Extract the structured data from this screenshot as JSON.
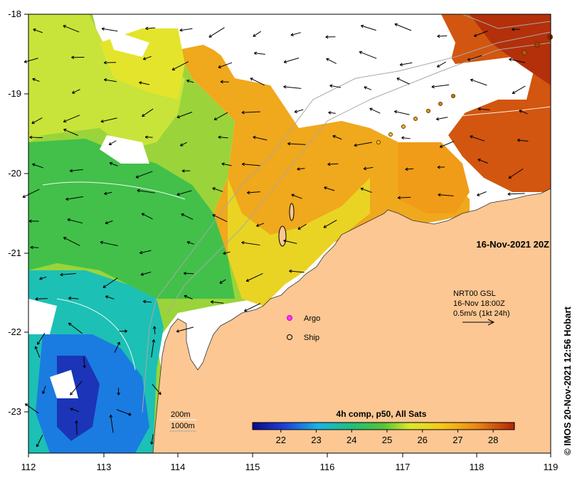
{
  "map": {
    "title": "16-Nov-2021 20Z",
    "x_ticks": [
      "112",
      "113",
      "114",
      "115",
      "116",
      "117",
      "118",
      "119"
    ],
    "y_ticks": [
      "-18",
      "-19",
      "-20",
      "-21",
      "-22",
      "-23"
    ],
    "lon_range": [
      112,
      119
    ],
    "lat_range": [
      -23.5,
      -18
    ],
    "land_color": "#fcc793",
    "ocean_blank_color": "#ffffff"
  },
  "current": {
    "line1": "NRT00 GSL",
    "line2": "16-Nov 18:00Z",
    "line3": "0.5m/s (1kt 24h)"
  },
  "legend": {
    "argo": "Argo",
    "ship": "Ship",
    "argo_color": "#ff33ff"
  },
  "bathy": {
    "line1": "200m",
    "line2": "1000m"
  },
  "colorbar": {
    "title": "4h comp, p50, All Sats",
    "ticks": [
      "22",
      "23",
      "24",
      "25",
      "26",
      "27",
      "28"
    ],
    "range": [
      21.2,
      28.6
    ]
  },
  "credit": "© IMOS 20-Nov-2021 12:56 Hobart"
}
